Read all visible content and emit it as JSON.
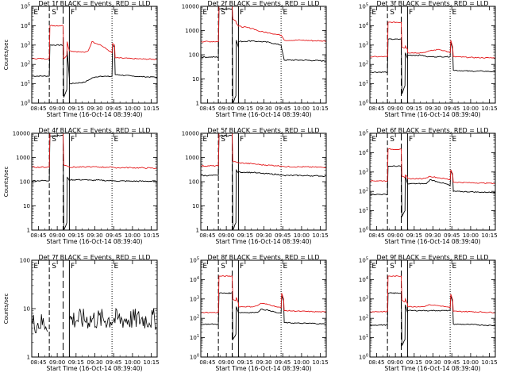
{
  "figure": {
    "ylabel": "Counts/sec",
    "xlabel": "Start Time (16-Oct-14 08:39:40)",
    "x_tick_labels": [
      "08:45",
      "09:00",
      "09:15",
      "09:30",
      "09:45",
      "10:00",
      "10:15"
    ],
    "colors": {
      "events": "#000000",
      "lld": "#e41a1c",
      "axes": "#000000"
    }
  },
  "chart_data": [
    {
      "id": "p1",
      "type": "line",
      "title": "Det 1f BLACK = Events, RED = LLD",
      "yscale": "log",
      "ylim": [
        1,
        100000
      ],
      "ytick_labels": [
        "10^0",
        "10^1",
        "10^2",
        "10^3",
        "10^4",
        "10^5"
      ],
      "xlim_minutes_after_08_39_40": [
        0,
        100
      ],
      "region_labels": [
        "E",
        "S",
        "F",
        "E"
      ],
      "series": [
        {
          "name": "Events",
          "color": "#000000",
          "x": [
            0,
            14,
            14.5,
            25,
            25.5,
            28,
            28.2,
            30,
            30.2,
            42,
            45,
            48,
            55,
            60,
            64,
            64.5,
            66,
            66.5,
            80,
            90,
            100
          ],
          "y": [
            25,
            25,
            1000,
            1000,
            2,
            5,
            500,
            20,
            10,
            12,
            15,
            20,
            25,
            24,
            24,
            1000,
            800,
            30,
            25,
            23,
            22
          ]
        },
        {
          "name": "LLD",
          "color": "#e41a1c",
          "x": [
            0,
            14,
            14.5,
            25,
            25.5,
            28,
            28.2,
            30,
            30.2,
            42,
            45,
            48,
            55,
            60,
            64,
            64.5,
            66,
            66.5,
            80,
            90,
            100
          ],
          "y": [
            200,
            200,
            10000,
            10000,
            200,
            300,
            1500,
            500,
            500,
            420,
            500,
            1500,
            1000,
            600,
            400,
            1200,
            1000,
            220,
            200,
            190,
            185
          ]
        }
      ]
    },
    {
      "id": "p2",
      "type": "line",
      "title": "Det 2f BLACK = Events, RED = LLD",
      "yscale": "log",
      "ylim": [
        1,
        10000
      ],
      "ytick_labels": [
        "1",
        "10",
        "100",
        "1000",
        "10000"
      ],
      "xlim_minutes_after_08_39_40": [
        0,
        100
      ],
      "region_labels": [
        "E",
        "S",
        "F",
        "E"
      ],
      "series": [
        {
          "name": "Events",
          "color": "#000000",
          "x": [
            0,
            14,
            14.5,
            25,
            25.5,
            28,
            28.2,
            30,
            30.2,
            42,
            45,
            48,
            55,
            60,
            64,
            64.5,
            66,
            66.5,
            80,
            90,
            100
          ],
          "y": [
            80,
            80,
            8000,
            8000,
            1,
            2,
            400,
            200,
            350,
            380,
            350,
            350,
            320,
            280,
            250,
            180,
            80,
            60,
            60,
            58,
            55
          ]
        },
        {
          "name": "LLD",
          "color": "#e41a1c",
          "x": [
            0,
            14,
            14.5,
            25,
            25.5,
            28,
            28.2,
            30,
            30.2,
            42,
            45,
            48,
            55,
            60,
            64,
            64.5,
            66,
            66.5,
            80,
            90,
            100
          ],
          "y": [
            350,
            350,
            20000,
            20000,
            3000,
            2500,
            2000,
            1500,
            1500,
            1200,
            1000,
            900,
            800,
            700,
            650,
            600,
            450,
            400,
            400,
            380,
            370
          ]
        }
      ]
    },
    {
      "id": "p3",
      "type": "line",
      "title": "Det 3f BLACK = Events, RED = LLD",
      "yscale": "log",
      "ylim": [
        1,
        100000
      ],
      "ytick_labels": [
        "10^0",
        "10^1",
        "10^2",
        "10^3",
        "10^4",
        "10^5"
      ],
      "xlim_minutes_after_08_39_40": [
        0,
        100
      ],
      "region_labels": [
        "E",
        "S",
        "F",
        "E"
      ],
      "series": [
        {
          "name": "Events",
          "color": "#000000",
          "x": [
            0,
            14,
            14.5,
            25,
            25.5,
            28,
            28.2,
            30,
            30.2,
            42,
            45,
            48,
            55,
            60,
            64,
            64.5,
            66,
            66.5,
            80,
            90,
            100
          ],
          "y": [
            40,
            40,
            2000,
            2000,
            3,
            8,
            400,
            200,
            300,
            300,
            250,
            250,
            250,
            250,
            250,
            1500,
            600,
            50,
            45,
            45,
            42
          ]
        },
        {
          "name": "LLD",
          "color": "#e41a1c",
          "x": [
            0,
            14,
            14.5,
            25,
            25.5,
            28,
            28.2,
            30,
            30.2,
            42,
            45,
            48,
            55,
            60,
            64,
            64.5,
            66,
            66.5,
            80,
            90,
            100
          ],
          "y": [
            250,
            250,
            15000,
            15000,
            800,
            700,
            900,
            600,
            400,
            400,
            450,
            500,
            600,
            500,
            400,
            1800,
            800,
            250,
            230,
            220,
            220
          ]
        }
      ]
    },
    {
      "id": "p4",
      "type": "line",
      "title": "Det 4f BLACK = Events, RED = LLD",
      "yscale": "log",
      "ylim": [
        1,
        10000
      ],
      "ytick_labels": [
        "1",
        "10",
        "100",
        "1000",
        "10000"
      ],
      "xlim_minutes_after_08_39_40": [
        0,
        100
      ],
      "region_labels": [
        "E",
        "S",
        "F",
        "E"
      ],
      "series": [
        {
          "name": "Events",
          "color": "#000000",
          "x": [
            0,
            14,
            14.5,
            25,
            25.5,
            28,
            28.2,
            30,
            30.2,
            42,
            45,
            48,
            55,
            60,
            64,
            64.5,
            66,
            66.5,
            80,
            90,
            100
          ],
          "y": [
            110,
            110,
            8000,
            8000,
            1,
            2,
            150,
            110,
            120,
            120,
            115,
            115,
            115,
            110,
            110,
            110,
            108,
            108,
            105,
            105,
            105
          ]
        },
        {
          "name": "LLD",
          "color": "#e41a1c",
          "x": [
            0,
            14,
            14.5,
            25,
            25.5,
            28,
            28.2,
            30,
            30.2,
            42,
            45,
            48,
            55,
            60,
            64,
            64.5,
            66,
            66.5,
            80,
            90,
            100
          ],
          "y": [
            400,
            400,
            20000,
            20000,
            500,
            450,
            450,
            420,
            400,
            400,
            420,
            410,
            400,
            400,
            390,
            400,
            380,
            380,
            380,
            370,
            360
          ]
        }
      ]
    },
    {
      "id": "p5",
      "type": "line",
      "title": "Det 5f BLACK = Events, RED = LLD",
      "yscale": "log",
      "ylim": [
        1,
        10000
      ],
      "ytick_labels": [
        "1",
        "10",
        "100",
        "1000",
        "10000"
      ],
      "xlim_minutes_after_08_39_40": [
        0,
        100
      ],
      "region_labels": [
        "E",
        "S",
        "F",
        "E"
      ],
      "series": [
        {
          "name": "Events",
          "color": "#000000",
          "x": [
            0,
            14,
            14.5,
            25,
            25.5,
            28,
            28.2,
            30,
            30.2,
            42,
            45,
            48,
            55,
            60,
            64,
            64.5,
            66,
            66.5,
            80,
            90,
            100
          ],
          "y": [
            180,
            180,
            8000,
            8000,
            1,
            2,
            300,
            230,
            250,
            240,
            230,
            220,
            210,
            200,
            195,
            190,
            185,
            180,
            180,
            175,
            170
          ]
        },
        {
          "name": "LLD",
          "color": "#e41a1c",
          "x": [
            0,
            14,
            14.5,
            25,
            25.5,
            28,
            28.2,
            30,
            30.2,
            42,
            45,
            48,
            55,
            60,
            64,
            64.5,
            66,
            66.5,
            80,
            90,
            100
          ],
          "y": [
            450,
            450,
            20000,
            20000,
            700,
            650,
            650,
            600,
            600,
            550,
            520,
            500,
            480,
            460,
            450,
            440,
            430,
            420,
            410,
            400,
            390
          ]
        }
      ]
    },
    {
      "id": "p6",
      "type": "line",
      "title": "Det 6f BLACK = Events, RED = LLD",
      "yscale": "log",
      "ylim": [
        1,
        100000
      ],
      "ytick_labels": [
        "10^0",
        "10^1",
        "10^2",
        "10^3",
        "10^4",
        "10^5"
      ],
      "xlim_minutes_after_08_39_40": [
        0,
        100
      ],
      "region_labels": [
        "E",
        "S",
        "F",
        "E"
      ],
      "series": [
        {
          "name": "Events",
          "color": "#000000",
          "x": [
            0,
            14,
            14.5,
            25,
            25.5,
            28,
            28.2,
            30,
            30.2,
            42,
            45,
            48,
            55,
            60,
            64,
            64.5,
            66,
            66.5,
            80,
            90,
            100
          ],
          "y": [
            70,
            70,
            2000,
            2000,
            5,
            10,
            600,
            250,
            250,
            250,
            250,
            400,
            300,
            250,
            200,
            1200,
            700,
            100,
            95,
            90,
            90
          ]
        },
        {
          "name": "LLD",
          "color": "#e41a1c",
          "x": [
            0,
            14,
            14.5,
            25,
            25.5,
            28,
            28.2,
            30,
            30.2,
            42,
            45,
            48,
            55,
            60,
            64,
            64.5,
            66,
            66.5,
            80,
            90,
            100
          ],
          "y": [
            350,
            350,
            15000,
            15000,
            600,
            500,
            700,
            550,
            450,
            450,
            500,
            600,
            500,
            450,
            400,
            1300,
            800,
            300,
            280,
            270,
            260
          ]
        }
      ]
    },
    {
      "id": "p7",
      "type": "line",
      "title": "Det 7f BLACK = Events, RED = LLD",
      "yscale": "log",
      "ylim": [
        1,
        100
      ],
      "ytick_labels": [
        "1",
        "10",
        "100"
      ],
      "xlim_minutes_after_08_39_40": [
        0,
        100
      ],
      "region_labels": [
        "E",
        "S",
        "F",
        "E"
      ],
      "series": [
        {
          "name": "Events",
          "color": "#000000",
          "noisy": true,
          "segments": [
            {
              "x": [
                0,
                13
              ],
              "level": 5
            },
            {
              "x": [
                30,
                100
              ],
              "level": 6
            }
          ]
        }
      ]
    },
    {
      "id": "p8",
      "type": "line",
      "title": "Det 8f BLACK = Events, RED = LLD",
      "yscale": "log",
      "ylim": [
        1,
        100000
      ],
      "ytick_labels": [
        "10^0",
        "10^1",
        "10^2",
        "10^3",
        "10^4",
        "10^5"
      ],
      "xlim_minutes_after_08_39_40": [
        0,
        100
      ],
      "region_labels": [
        "E",
        "S",
        "F",
        "E"
      ],
      "series": [
        {
          "name": "Events",
          "color": "#000000",
          "x": [
            0,
            14,
            14.5,
            25,
            25.5,
            28,
            28.2,
            30,
            30.2,
            42,
            45,
            48,
            55,
            60,
            64,
            64.5,
            66,
            66.5,
            80,
            90,
            100
          ],
          "y": [
            50,
            50,
            2000,
            2000,
            8,
            15,
            400,
            200,
            200,
            200,
            200,
            300,
            250,
            200,
            180,
            1500,
            800,
            60,
            55,
            55,
            50
          ]
        },
        {
          "name": "LLD",
          "color": "#e41a1c",
          "x": [
            0,
            14,
            14.5,
            25,
            25.5,
            28,
            28.2,
            30,
            30.2,
            42,
            45,
            48,
            55,
            60,
            64,
            64.5,
            66,
            66.5,
            80,
            90,
            100
          ],
          "y": [
            200,
            200,
            15000,
            15000,
            1000,
            800,
            1200,
            600,
            400,
            400,
            450,
            600,
            500,
            400,
            350,
            2000,
            1000,
            250,
            230,
            220,
            210
          ]
        }
      ]
    },
    {
      "id": "p9",
      "type": "line",
      "title": "Det 9f BLACK = Events, RED = LLD",
      "yscale": "log",
      "ylim": [
        1,
        100000
      ],
      "ytick_labels": [
        "10^0",
        "10^1",
        "10^2",
        "10^3",
        "10^4",
        "10^5"
      ],
      "xlim_minutes_after_08_39_40": [
        0,
        100
      ],
      "region_labels": [
        "E",
        "S",
        "F",
        "E"
      ],
      "series": [
        {
          "name": "Events",
          "color": "#000000",
          "x": [
            0,
            14,
            14.5,
            25,
            25.5,
            28,
            28.2,
            30,
            30.2,
            42,
            45,
            48,
            55,
            60,
            64,
            64.5,
            66,
            66.5,
            80,
            90,
            100
          ],
          "y": [
            45,
            45,
            2000,
            2000,
            4,
            8,
            500,
            200,
            250,
            250,
            250,
            250,
            250,
            250,
            250,
            1500,
            700,
            50,
            48,
            45,
            42
          ]
        },
        {
          "name": "LLD",
          "color": "#e41a1c",
          "x": [
            0,
            14,
            14.5,
            25,
            25.5,
            28,
            28.2,
            30,
            30.2,
            42,
            45,
            48,
            55,
            60,
            64,
            64.5,
            66,
            66.5,
            80,
            90,
            100
          ],
          "y": [
            220,
            220,
            15000,
            15000,
            900,
            700,
            1000,
            550,
            400,
            400,
            450,
            500,
            450,
            400,
            350,
            1800,
            900,
            230,
            220,
            210,
            200
          ]
        }
      ]
    }
  ]
}
